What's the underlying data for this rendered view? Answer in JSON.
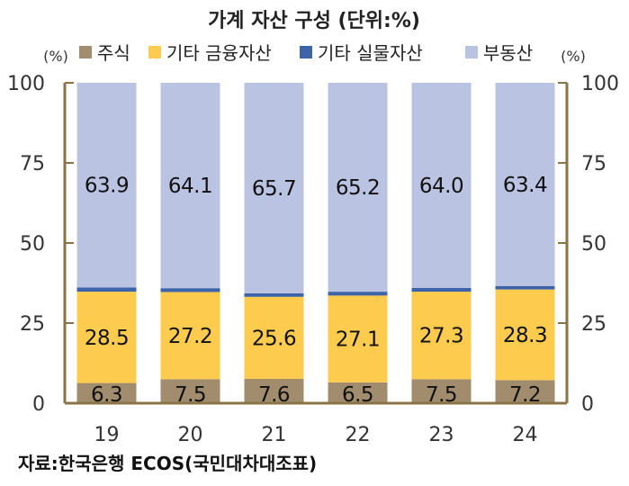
{
  "chart_data": {
    "type": "bar",
    "stacked": true,
    "title": "가계 자산 구성 (단위:%)",
    "left_unit": "(%)",
    "right_unit": "(%)",
    "categories": [
      "19",
      "20",
      "21",
      "22",
      "23",
      "24"
    ],
    "ylim": [
      0,
      100
    ],
    "yticks": [
      "0",
      "25",
      "50",
      "75",
      "100"
    ],
    "series": [
      {
        "name": "주식",
        "color": "#a18d6e",
        "values": [
          6.3,
          7.5,
          7.6,
          6.5,
          7.5,
          7.2
        ]
      },
      {
        "name": "기타 금융자산",
        "color": "#fdcc4f",
        "values": [
          28.5,
          27.2,
          25.6,
          27.1,
          27.3,
          28.3
        ]
      },
      {
        "name": "기타 실물자산",
        "color": "#3d64a8",
        "values": [
          1.3,
          1.2,
          1.1,
          1.2,
          1.2,
          1.1
        ]
      },
      {
        "name": "부동산",
        "color": "#bbc3e2",
        "values": [
          63.9,
          64.1,
          65.7,
          65.2,
          64.0,
          63.4
        ]
      }
    ],
    "data_labels": {
      "주식": [
        "6.3",
        "7.5",
        "7.6",
        "6.5",
        "7.5",
        "7.2"
      ],
      "기타 금융자산": [
        "28.5",
        "27.2",
        "25.6",
        "27.1",
        "27.3",
        "28.3"
      ],
      "부동산": [
        "63.9",
        "64.1",
        "65.7",
        "65.2",
        "64.0",
        "63.4"
      ]
    },
    "axis_color": "#8a7447",
    "grid": false,
    "legend_position": "top"
  },
  "source": "자료:한국은행 ECOS(국민대차대조표)"
}
